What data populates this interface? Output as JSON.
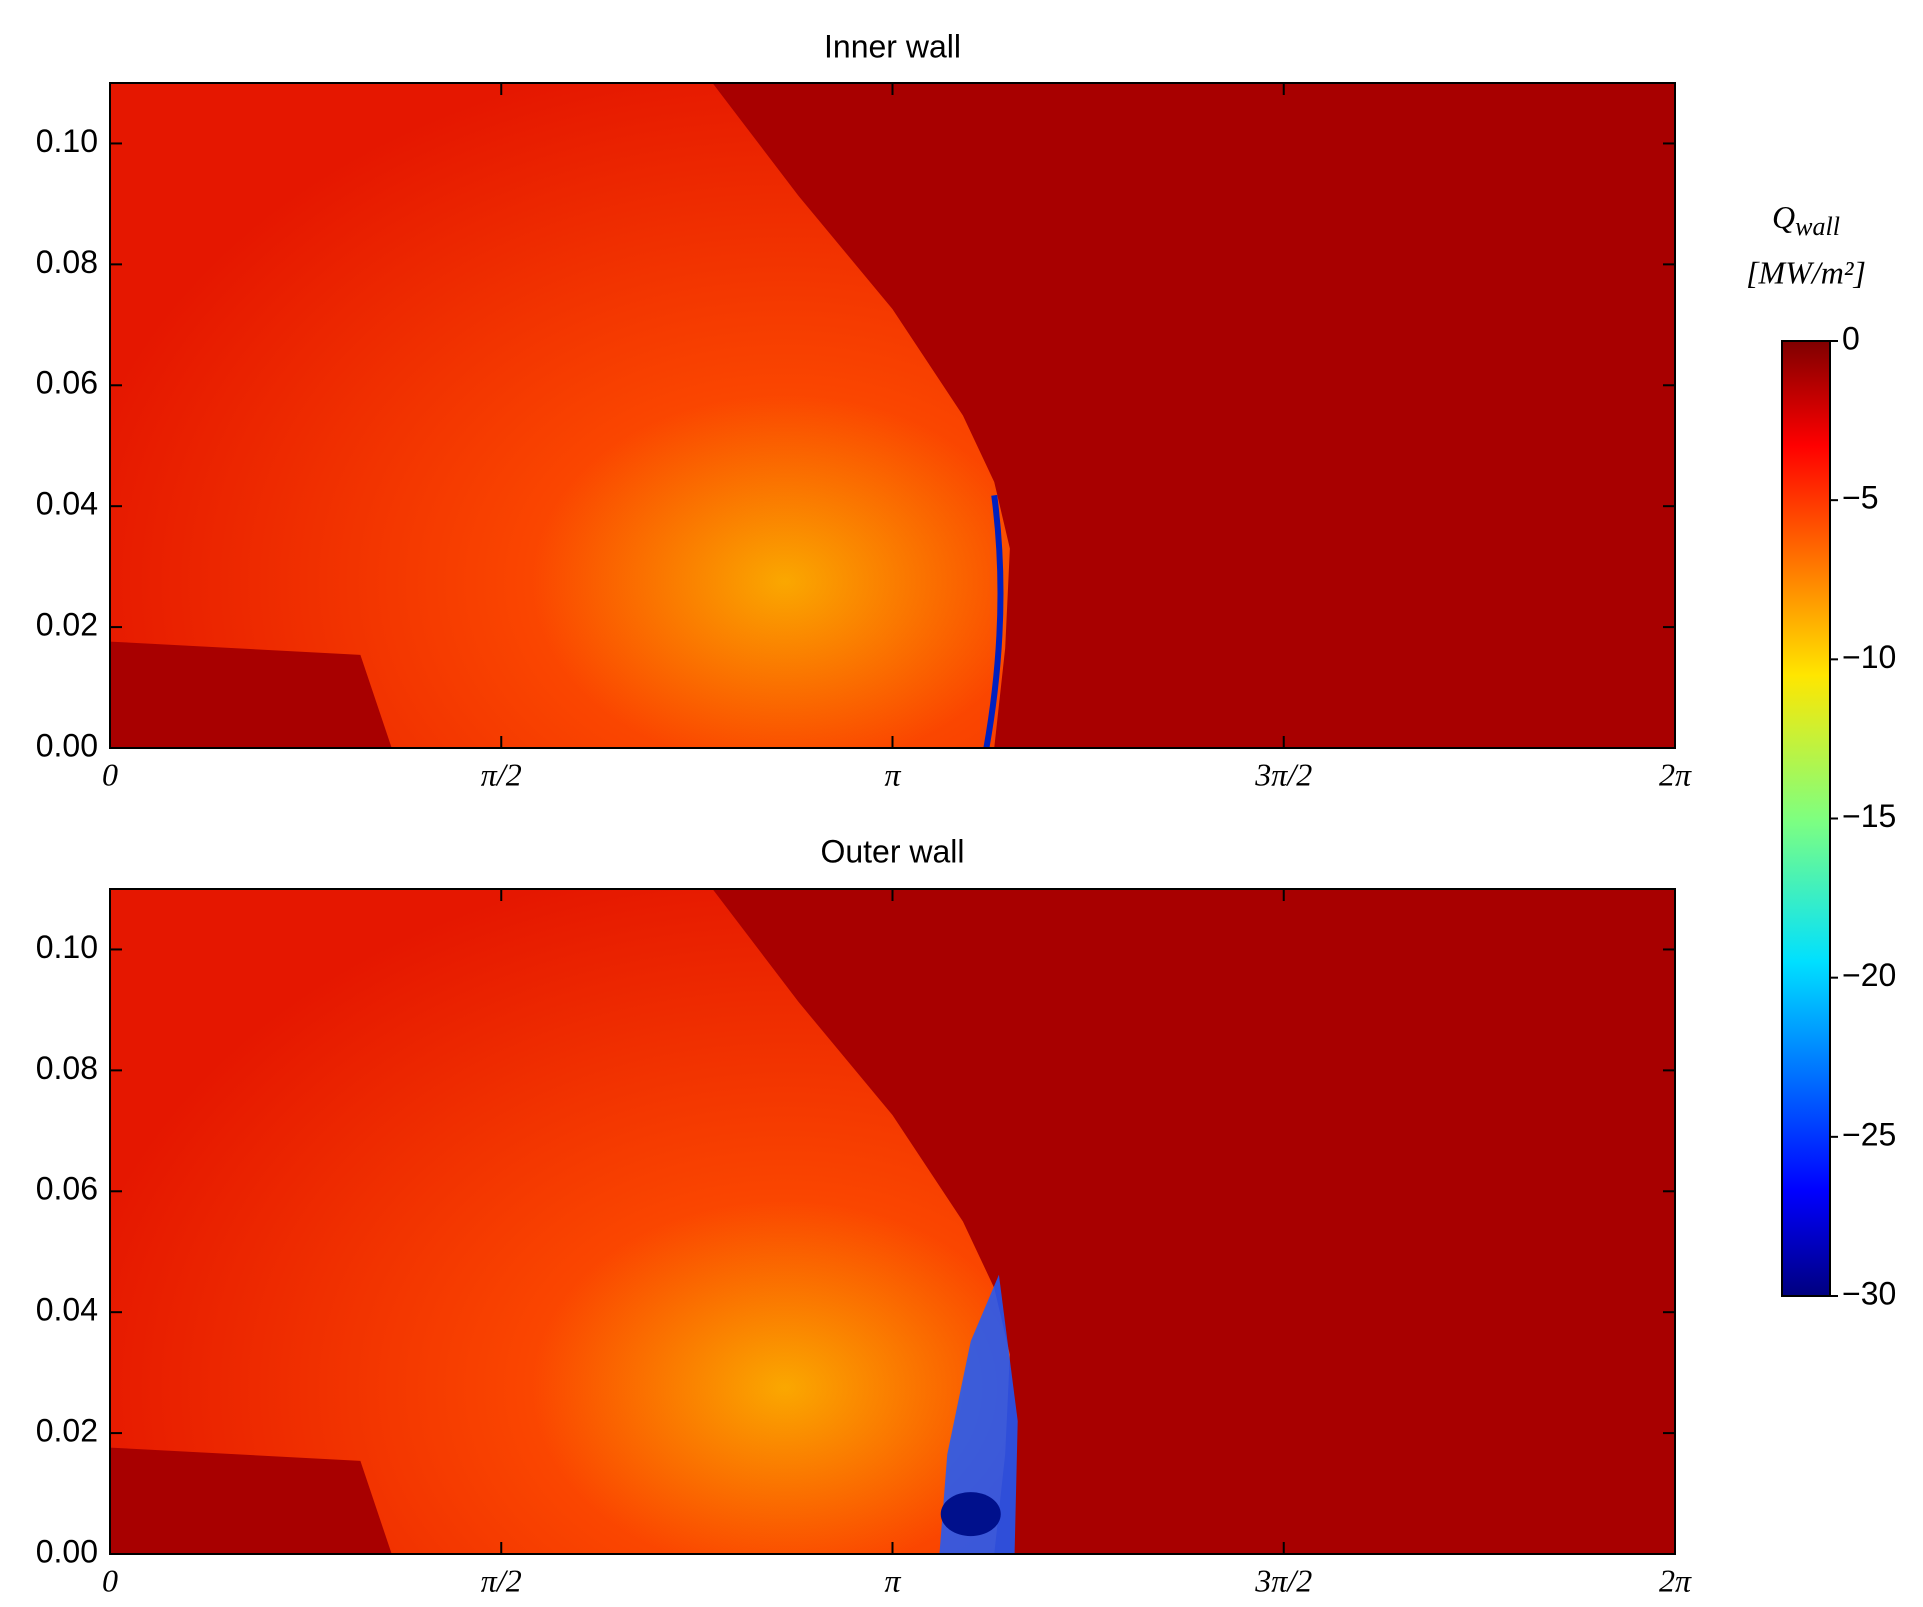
{
  "chart_data": [
    {
      "type": "heatmap",
      "title": "Inner wall",
      "xlim": [
        0,
        6.283185307179586
      ],
      "xticks": [
        0,
        {
          "value": 1.5707963267948966,
          "label": "π/2"
        },
        {
          "value": 3.141592653589793,
          "label": "π"
        },
        {
          "value": 4.71238898038469,
          "label": "3π/2"
        },
        {
          "value": 6.283185307179586,
          "label": "2π"
        }
      ],
      "ylim": [
        0,
        0.11
      ],
      "yticks": [
        {
          "value": 0,
          "label": "0.00"
        },
        0.02,
        0.04,
        0.06,
        0.08,
        {
          "value": 0.1,
          "label": "0.10"
        }
      ]
    },
    {
      "type": "heatmap",
      "title": "Outer wall",
      "xlim": [
        0,
        6.283185307179586
      ],
      "xticks": [
        0,
        {
          "value": 1.5707963267948966,
          "label": "π/2"
        },
        {
          "value": 3.141592653589793,
          "label": "π"
        },
        {
          "value": 4.71238898038469,
          "label": "3π/2"
        },
        {
          "value": 6.283185307179586,
          "label": "2π"
        }
      ],
      "ylim": [
        0,
        0.11
      ],
      "yticks": [
        {
          "value": 0,
          "label": "0.00"
        },
        0.02,
        0.04,
        0.06,
        0.08,
        {
          "value": 0.1,
          "label": "0.10"
        }
      ]
    }
  ],
  "colorbar": {
    "symbol": "Q",
    "subscript": "wall",
    "unit": "[MW/m²]",
    "colormap": "jet",
    "clim": [
      -30,
      0
    ],
    "ticks": [
      0,
      {
        "value": -5,
        "label": "−5"
      },
      {
        "value": -10,
        "label": "−10"
      },
      {
        "value": -15,
        "label": "−15"
      },
      {
        "value": -20,
        "label": "−20"
      },
      {
        "value": -25,
        "label": "−25"
      },
      {
        "value": -30,
        "label": "−30"
      }
    ]
  }
}
